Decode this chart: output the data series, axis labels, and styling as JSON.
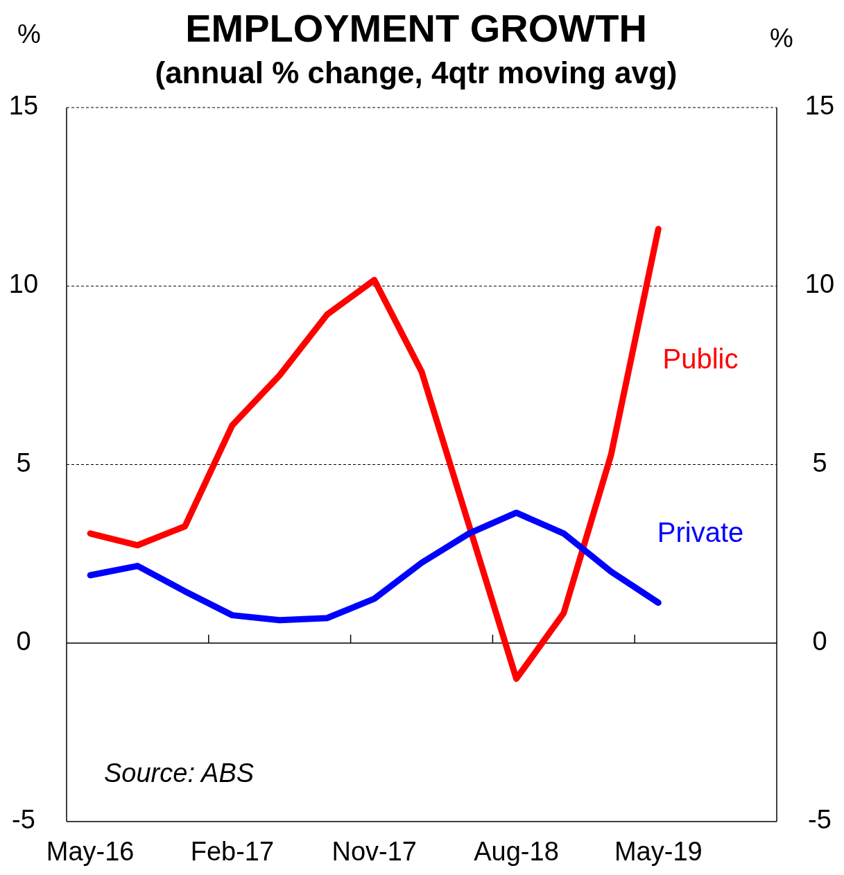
{
  "chart_data": {
    "type": "line",
    "title": "EMPLOYMENT GROWTH",
    "subtitle": "(annual % change, 4qtr moving avg)",
    "ylabel": "%",
    "y2label": "%",
    "categories": [
      "May-16",
      null,
      null,
      "Feb-17",
      null,
      null,
      "Nov-17",
      null,
      null,
      "Aug-18",
      null,
      null,
      "May-19",
      null,
      null
    ],
    "series": [
      {
        "name": "Public",
        "color": "#ff0000",
        "values": [
          3.07,
          2.74,
          3.27,
          6.1,
          7.5,
          9.2,
          10.17,
          7.6,
          3.3,
          -1.0,
          0.84,
          5.27,
          11.6,
          null,
          null
        ]
      },
      {
        "name": "Private",
        "color": "#0000ff",
        "values": [
          1.9,
          2.16,
          1.45,
          0.78,
          0.64,
          0.7,
          1.24,
          2.25,
          3.07,
          3.65,
          3.07,
          2.0,
          1.13,
          null,
          null
        ]
      }
    ],
    "ylim": [
      -5,
      15
    ],
    "yticks": [
      -5,
      0,
      5,
      10,
      15
    ],
    "y2lim": [
      -5,
      15
    ],
    "y2ticks": [
      -5,
      0,
      5,
      10,
      15
    ],
    "grid": "y",
    "line_style": "solid",
    "marker": "none",
    "annotations": [
      "Source: ABS"
    ]
  }
}
